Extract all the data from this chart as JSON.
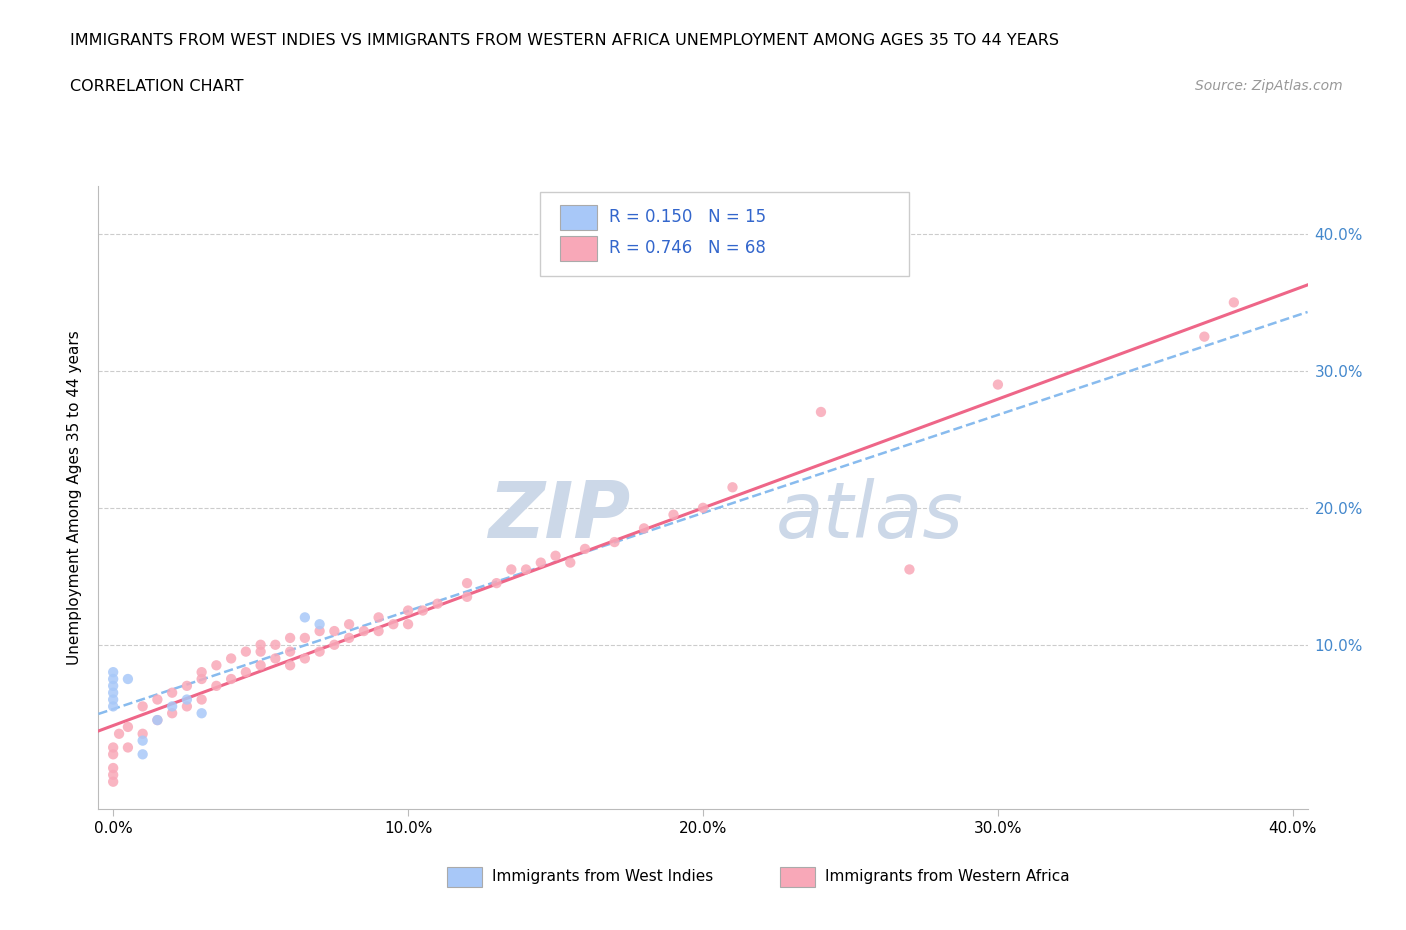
{
  "title_line1": "IMMIGRANTS FROM WEST INDIES VS IMMIGRANTS FROM WESTERN AFRICA UNEMPLOYMENT AMONG AGES 35 TO 44 YEARS",
  "title_line2": "CORRELATION CHART",
  "source_text": "Source: ZipAtlas.com",
  "ylabel": "Unemployment Among Ages 35 to 44 years",
  "xlim": [
    -0.005,
    0.405
  ],
  "ylim": [
    -0.02,
    0.435
  ],
  "xtick_labels": [
    "0.0%",
    "10.0%",
    "20.0%",
    "30.0%",
    "40.0%"
  ],
  "xtick_values": [
    0.0,
    0.1,
    0.2,
    0.3,
    0.4
  ],
  "ytick_labels": [
    "10.0%",
    "20.0%",
    "30.0%",
    "40.0%"
  ],
  "ytick_values": [
    0.1,
    0.2,
    0.3,
    0.4
  ],
  "color_west_indies": "#a8c8f8",
  "color_west_africa": "#f8a8b8",
  "color_trend_west_indies": "#88bbee",
  "color_trend_west_africa": "#ee6688",
  "watermark_zip": "ZIP",
  "watermark_atlas": "atlas",
  "watermark_color": "#ccd8e8",
  "legend_r1": "R = 0.150",
  "legend_n1": "N = 15",
  "legend_r2": "R = 0.746",
  "legend_n2": "N = 68",
  "wi_x": [
    0.0,
    0.0,
    0.0,
    0.0,
    0.0,
    0.0,
    0.005,
    0.01,
    0.01,
    0.015,
    0.02,
    0.025,
    0.03,
    0.065,
    0.07
  ],
  "wi_y": [
    0.055,
    0.06,
    0.065,
    0.07,
    0.075,
    0.08,
    0.075,
    0.02,
    0.03,
    0.045,
    0.055,
    0.06,
    0.05,
    0.12,
    0.115
  ],
  "wa_x": [
    0.0,
    0.0,
    0.0,
    0.0,
    0.0,
    0.002,
    0.005,
    0.005,
    0.01,
    0.01,
    0.015,
    0.015,
    0.02,
    0.02,
    0.025,
    0.025,
    0.03,
    0.03,
    0.03,
    0.035,
    0.035,
    0.04,
    0.04,
    0.045,
    0.045,
    0.05,
    0.05,
    0.05,
    0.055,
    0.055,
    0.06,
    0.06,
    0.06,
    0.065,
    0.065,
    0.07,
    0.07,
    0.075,
    0.075,
    0.08,
    0.08,
    0.085,
    0.09,
    0.09,
    0.095,
    0.1,
    0.1,
    0.105,
    0.11,
    0.12,
    0.12,
    0.13,
    0.135,
    0.14,
    0.145,
    0.15,
    0.155,
    0.16,
    0.17,
    0.18,
    0.19,
    0.2,
    0.21,
    0.24,
    0.27,
    0.3,
    0.37,
    0.38
  ],
  "wa_y": [
    0.0,
    0.005,
    0.01,
    0.02,
    0.025,
    0.035,
    0.025,
    0.04,
    0.035,
    0.055,
    0.045,
    0.06,
    0.05,
    0.065,
    0.055,
    0.07,
    0.06,
    0.075,
    0.08,
    0.07,
    0.085,
    0.075,
    0.09,
    0.08,
    0.095,
    0.085,
    0.095,
    0.1,
    0.09,
    0.1,
    0.085,
    0.095,
    0.105,
    0.09,
    0.105,
    0.095,
    0.11,
    0.1,
    0.11,
    0.105,
    0.115,
    0.11,
    0.11,
    0.12,
    0.115,
    0.115,
    0.125,
    0.125,
    0.13,
    0.135,
    0.145,
    0.145,
    0.155,
    0.155,
    0.16,
    0.165,
    0.16,
    0.17,
    0.175,
    0.185,
    0.195,
    0.2,
    0.215,
    0.27,
    0.155,
    0.29,
    0.325,
    0.35
  ]
}
